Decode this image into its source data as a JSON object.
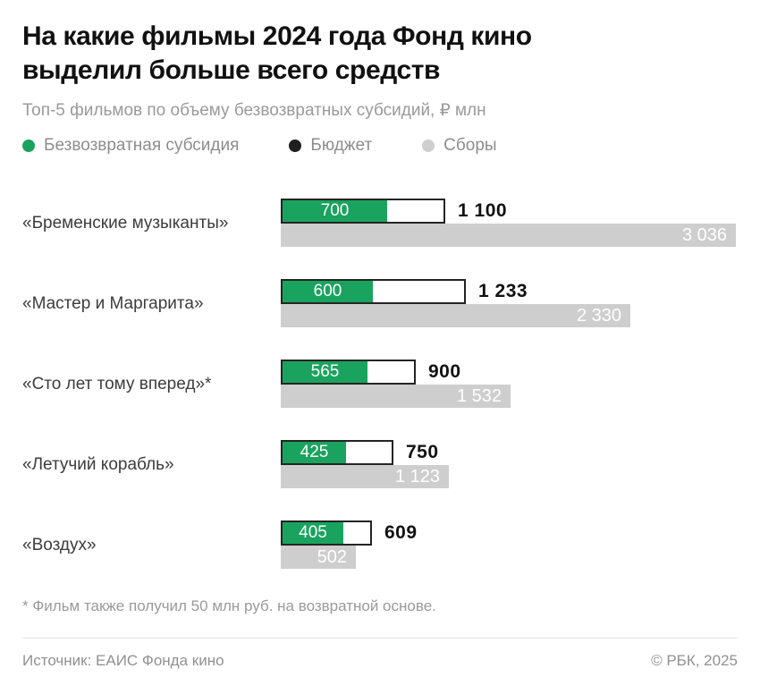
{
  "title_lines": [
    "На какие фильмы 2024 года Фонд кино",
    "выделил больше всего средств"
  ],
  "subtitle": "Топ-5 фильмов по объему безвозвратных субсидий, ₽ млн",
  "legend": [
    {
      "label": "Безвозвратная субсидия",
      "color": "#1aa35e"
    },
    {
      "label": "Бюджет",
      "color": "#1f1f1f"
    },
    {
      "label": "Сборы",
      "color": "#cecece"
    }
  ],
  "colors": {
    "subsidy_fill": "#1aa35e",
    "budget_border": "#242424",
    "budget_fill": "#ffffff",
    "box_office_fill": "#cecece"
  },
  "chart_data": {
    "type": "bar",
    "title": "На какие фильмы 2024 года Фонд кино выделил больше всего средств",
    "subtitle": "Топ-5 фильмов по объему безвозвратных субсидий, ₽ млн",
    "unit": "₽ млн",
    "orientation": "horizontal",
    "legend_position": "top",
    "series_names": [
      "Безвозвратная субсидия",
      "Бюджет",
      "Сборы"
    ],
    "max_value": 3036,
    "rows": [
      {
        "label": "«Бременские музыканты»",
        "subsidy": 700,
        "budget": 1100,
        "box_office": 3036,
        "subsidy_text": "700",
        "budget_text": "1 100",
        "box_office_text": "3 036"
      },
      {
        "label": "«Мастер и Маргарита»",
        "subsidy": 600,
        "budget": 1233,
        "box_office": 2330,
        "subsidy_text": "600",
        "budget_text": "1 233",
        "box_office_text": "2 330"
      },
      {
        "label": "«Сто лет тому вперед»*",
        "subsidy": 565,
        "budget": 900,
        "box_office": 1532,
        "subsidy_text": "565",
        "budget_text": "900",
        "box_office_text": "1 532"
      },
      {
        "label": "«Летучий корабль»",
        "subsidy": 425,
        "budget": 750,
        "box_office": 1123,
        "subsidy_text": "425",
        "budget_text": "750",
        "box_office_text": "1 123"
      },
      {
        "label": "«Воздух»",
        "subsidy": 405,
        "budget": 609,
        "box_office": 502,
        "subsidy_text": "405",
        "budget_text": "609",
        "box_office_text": "502"
      }
    ]
  },
  "footnote": "* Фильм также получил 50 млн руб. на возвратной основе.",
  "footer": {
    "source": "Источник: ЕАИС Фонда кино",
    "copyright": "© РБК, 2025"
  }
}
